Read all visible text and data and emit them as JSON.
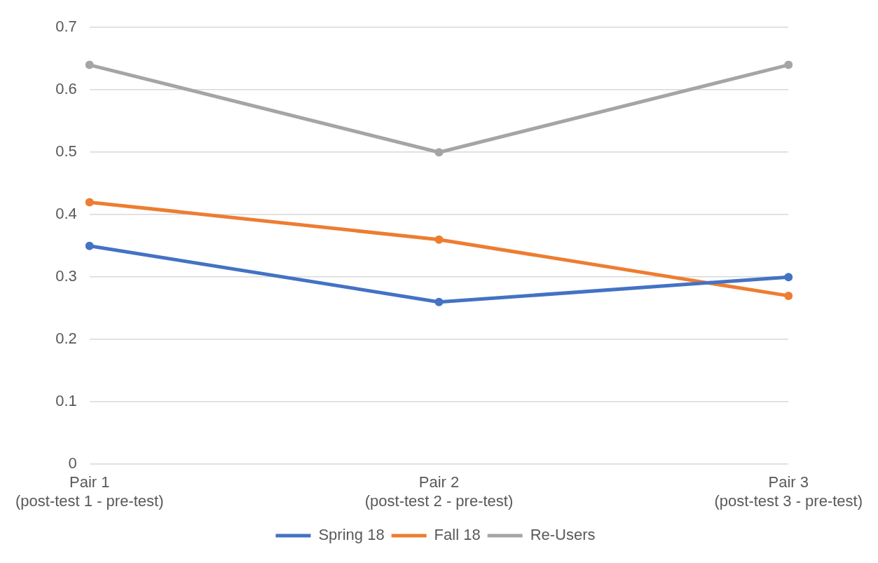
{
  "chart_data": {
    "type": "line",
    "categories": [
      "Pair 1\n(post-test 1 - pre-test)",
      "Pair 2\n(post-test 2 - pre-test)",
      "Pair 3\n(post-test 3 - pre-test)"
    ],
    "series": [
      {
        "name": "Spring 18",
        "color": "#4472c4",
        "values": [
          0.35,
          0.26,
          0.3
        ]
      },
      {
        "name": "Fall 18",
        "color": "#ed7d31",
        "values": [
          0.42,
          0.36,
          0.27
        ]
      },
      {
        "name": "Re-Users",
        "color": "#a5a5a5",
        "values": [
          0.64,
          0.5,
          0.64
        ]
      }
    ],
    "ylim": [
      0,
      0.7
    ],
    "yticks": [
      0,
      0.1,
      0.2,
      0.3,
      0.4,
      0.5,
      0.6,
      0.7
    ],
    "grid": "y",
    "legend": "bottom",
    "marker": "circle",
    "line_style": "solid"
  }
}
